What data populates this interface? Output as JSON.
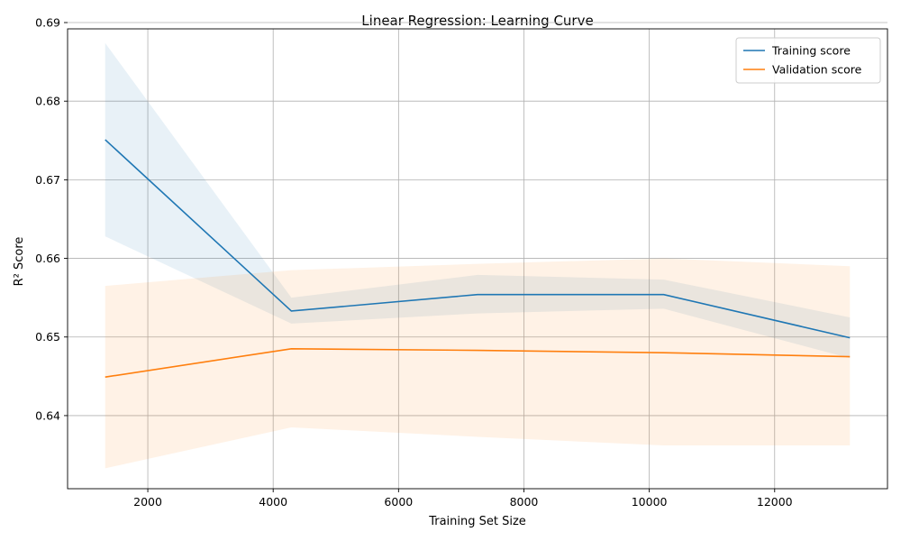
{
  "chart_data": {
    "type": "line",
    "title": "Linear Regression: Learning Curve",
    "xlabel": "Training Set Size",
    "ylabel": "R² Score",
    "xlim": [
      720,
      13800
    ],
    "ylim": [
      0.6307,
      0.6892
    ],
    "x_ticks": [
      2000,
      4000,
      6000,
      8000,
      10000,
      12000
    ],
    "y_ticks": [
      0.64,
      0.65,
      0.66,
      0.67,
      0.68,
      0.69
    ],
    "grid": true,
    "legend_position": "top-right",
    "x": [
      1320,
      4290,
      7260,
      10230,
      13200
    ],
    "series": [
      {
        "name": "Training score",
        "color": "#1f77b4",
        "values": [
          0.6751,
          0.6533,
          0.6554,
          0.6554,
          0.6499
        ],
        "band_lower": [
          0.6628,
          0.6517,
          0.653,
          0.6536,
          0.6473
        ],
        "band_upper": [
          0.6874,
          0.655,
          0.6579,
          0.6573,
          0.6525
        ]
      },
      {
        "name": "Validation score",
        "color": "#ff7f0e",
        "values": [
          0.6449,
          0.6485,
          0.6483,
          0.648,
          0.6475
        ],
        "band_lower": [
          0.6333,
          0.6385,
          0.6373,
          0.6362,
          0.6362
        ],
        "band_upper": [
          0.6565,
          0.6585,
          0.6593,
          0.66,
          0.659
        ]
      }
    ]
  }
}
